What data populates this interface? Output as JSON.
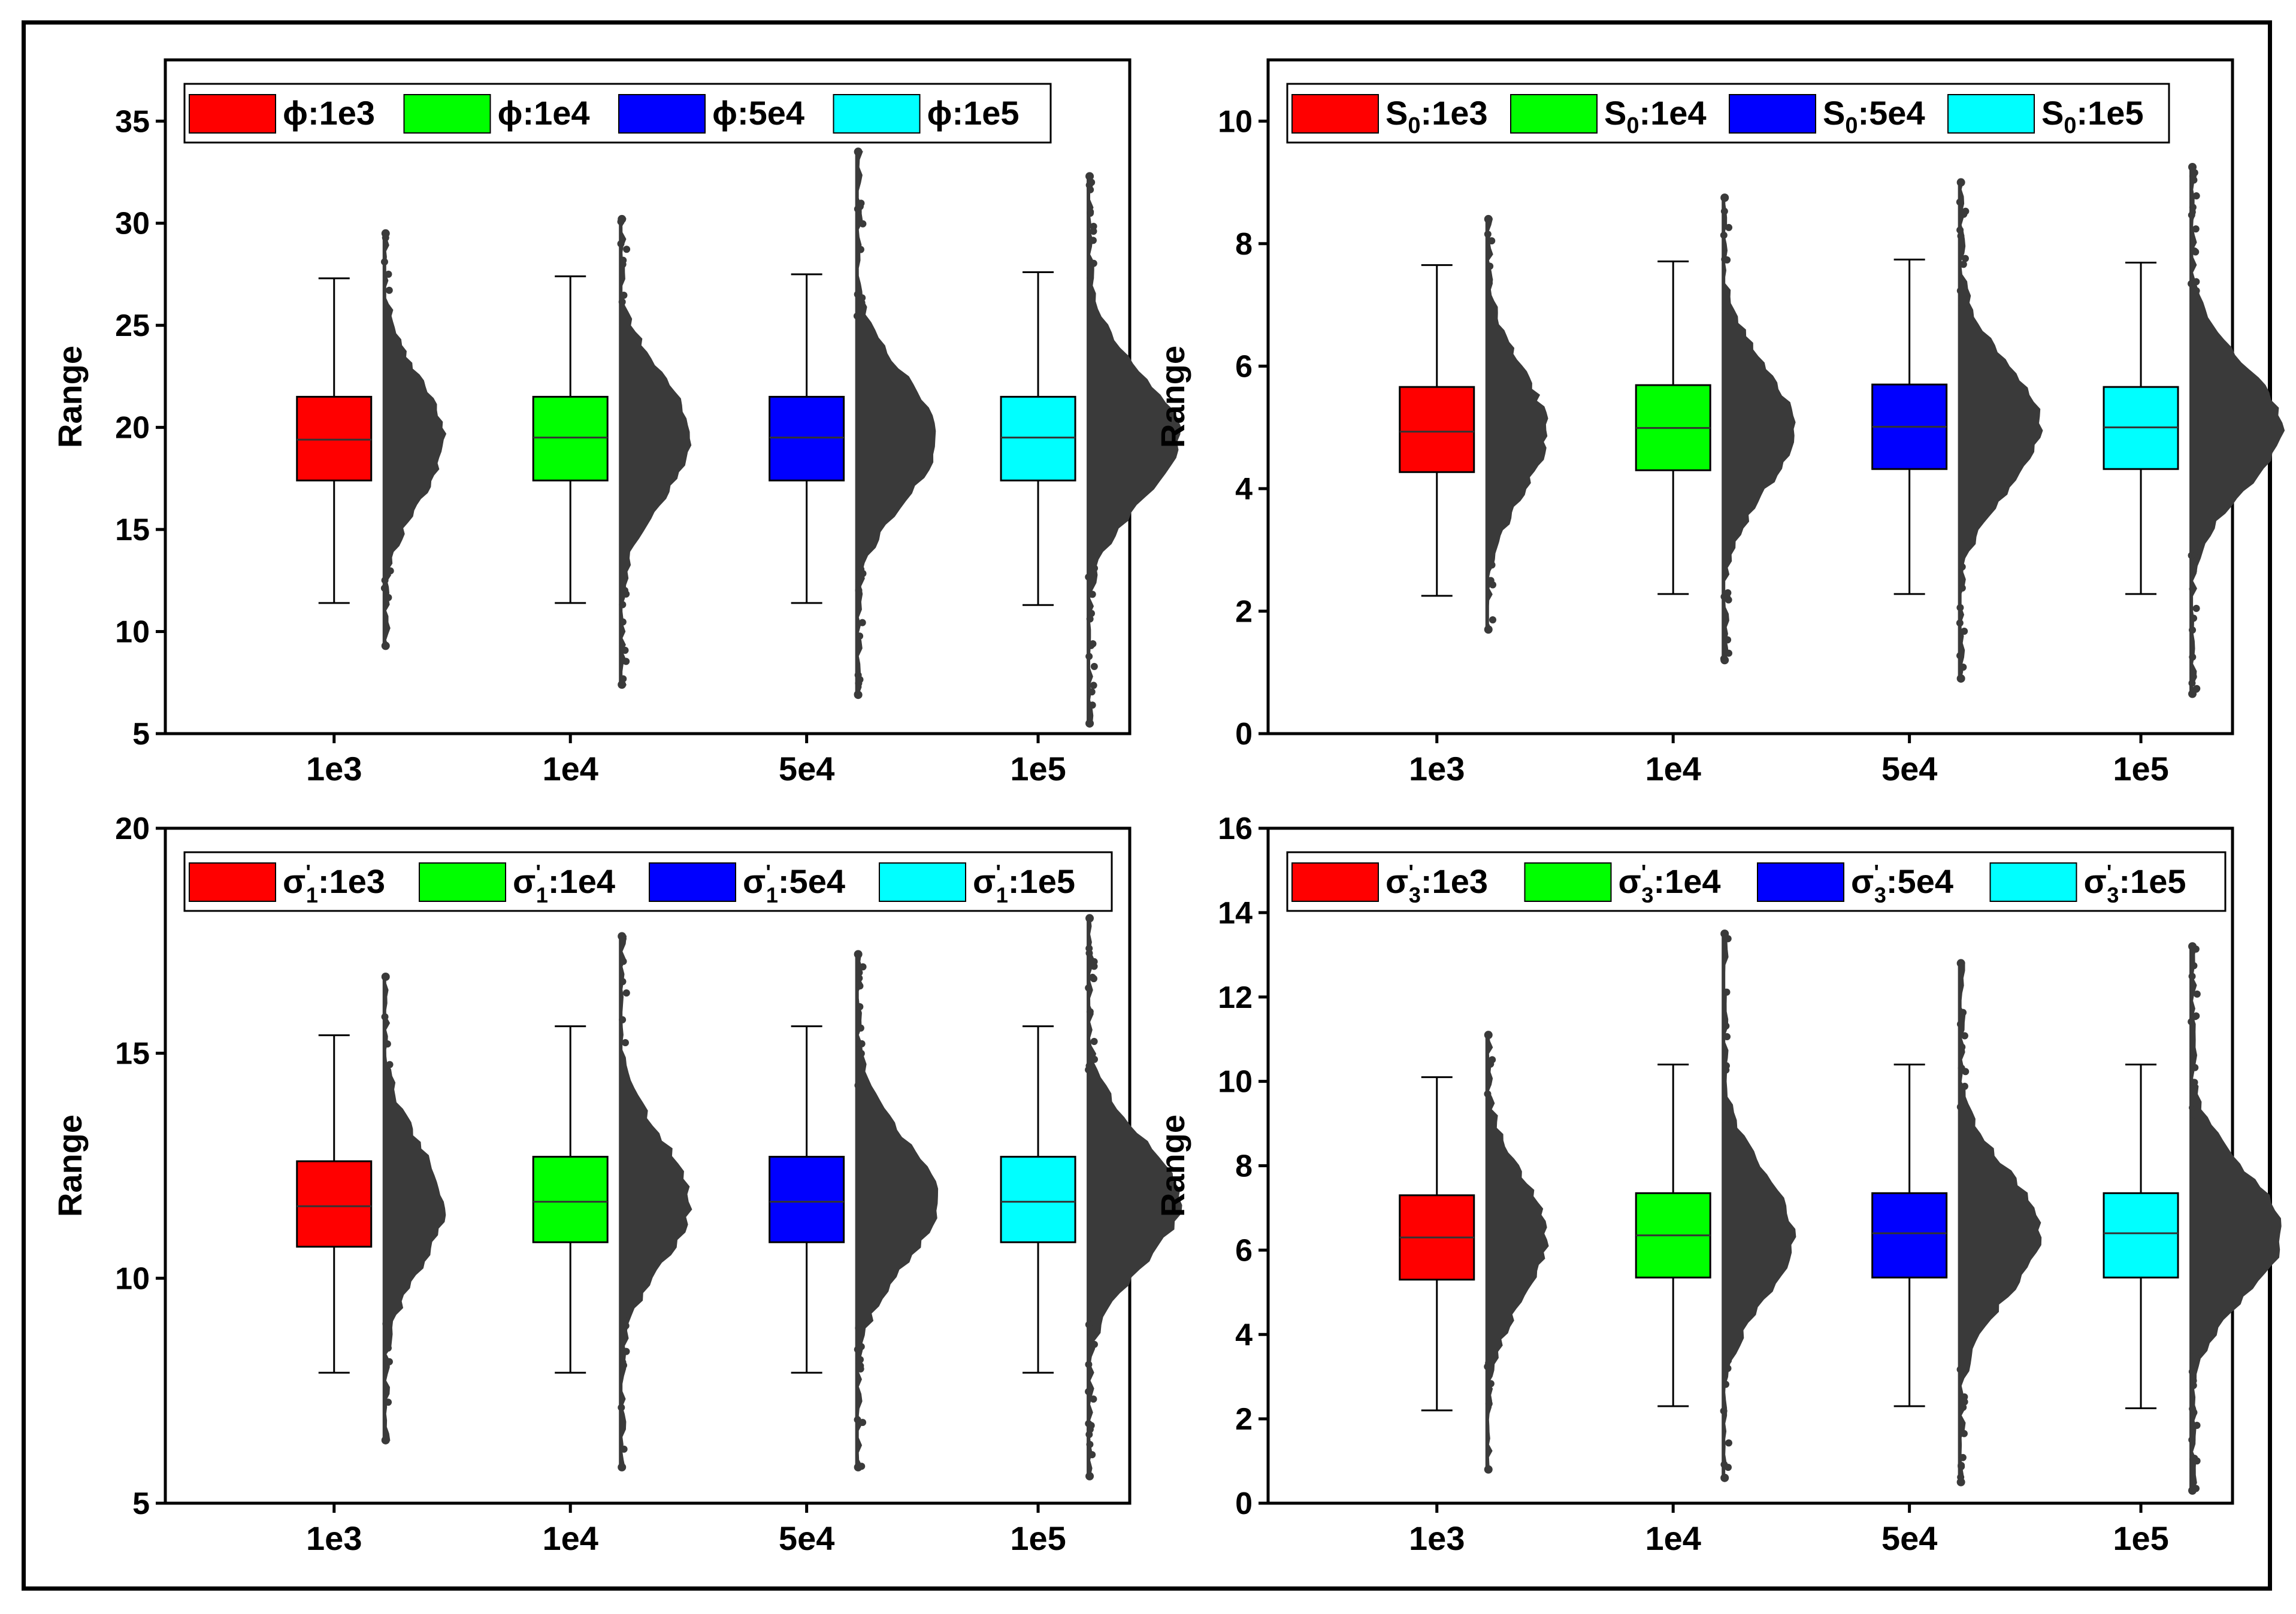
{
  "colors": {
    "red": "#ff0000",
    "green": "#00ff00",
    "blue": "#0000ff",
    "cyan": "#00ffff",
    "scatter": "#3a3a3a"
  },
  "chart_data": [
    {
      "type": "box",
      "ylabel": "Range",
      "ylim": [
        5,
        38
      ],
      "yticks": [
        5,
        10,
        15,
        20,
        25,
        30,
        35
      ],
      "categories": [
        "1e3",
        "1e4",
        "5e4",
        "1e5"
      ],
      "legend": [
        {
          "sym": "ϕ",
          "sub": "",
          "sup": "",
          "text": ":1e3"
        },
        {
          "sym": "ϕ",
          "sub": "",
          "sup": "",
          "text": ":1e4"
        },
        {
          "sym": "ϕ",
          "sub": "",
          "sup": "",
          "text": ":5e4"
        },
        {
          "sym": "ϕ",
          "sub": "",
          "sup": "",
          "text": ":1e5"
        }
      ],
      "boxes": [
        {
          "whisker_low": 11.4,
          "q1": 17.4,
          "median": 19.4,
          "q3": 21.5,
          "whisker_high": 27.3,
          "dist_min": 9.3,
          "dist_max": 29.5
        },
        {
          "whisker_low": 11.4,
          "q1": 17.4,
          "median": 19.5,
          "q3": 21.5,
          "whisker_high": 27.4,
          "dist_min": 7.4,
          "dist_max": 30.2
        },
        {
          "whisker_low": 11.4,
          "q1": 17.4,
          "median": 19.5,
          "q3": 21.5,
          "whisker_high": 27.5,
          "dist_min": 6.9,
          "dist_max": 33.5
        },
        {
          "whisker_low": 11.3,
          "q1": 17.4,
          "median": 19.5,
          "q3": 21.5,
          "whisker_high": 27.6,
          "dist_min": 5.5,
          "dist_max": 32.3
        }
      ]
    },
    {
      "type": "box",
      "ylabel": "Range",
      "ylim": [
        0,
        11
      ],
      "yticks": [
        0,
        2,
        4,
        6,
        8,
        10
      ],
      "categories": [
        "1e3",
        "1e4",
        "5e4",
        "1e5"
      ],
      "legend": [
        {
          "sym": "S",
          "sub": "0",
          "sup": "",
          "text": ":1e3"
        },
        {
          "sym": "S",
          "sub": "0",
          "sup": "",
          "text": ":1e4"
        },
        {
          "sym": "S",
          "sub": "0",
          "sup": "",
          "text": ":5e4"
        },
        {
          "sym": "S",
          "sub": "0",
          "sup": "",
          "text": ":1e5"
        }
      ],
      "boxes": [
        {
          "whisker_low": 2.25,
          "q1": 4.27,
          "median": 4.93,
          "q3": 5.66,
          "whisker_high": 7.65,
          "dist_min": 1.7,
          "dist_max": 8.4
        },
        {
          "whisker_low": 2.28,
          "q1": 4.3,
          "median": 4.99,
          "q3": 5.69,
          "whisker_high": 7.71,
          "dist_min": 1.2,
          "dist_max": 8.75
        },
        {
          "whisker_low": 2.28,
          "q1": 4.32,
          "median": 5.01,
          "q3": 5.7,
          "whisker_high": 7.74,
          "dist_min": 0.9,
          "dist_max": 9.0
        },
        {
          "whisker_low": 2.28,
          "q1": 4.32,
          "median": 5.0,
          "q3": 5.66,
          "whisker_high": 7.69,
          "dist_min": 0.65,
          "dist_max": 9.25
        }
      ]
    },
    {
      "type": "box",
      "ylabel": "Range",
      "ylim": [
        5,
        20
      ],
      "yticks": [
        5,
        10,
        15,
        20
      ],
      "categories": [
        "1e3",
        "1e4",
        "5e4",
        "1e5"
      ],
      "legend": [
        {
          "sym": "σ",
          "sub": "1",
          "sup": "'",
          "text": ":1e3"
        },
        {
          "sym": "σ",
          "sub": "1",
          "sup": "'",
          "text": ":1e4"
        },
        {
          "sym": "σ",
          "sub": "1",
          "sup": "'",
          "text": ":5e4"
        },
        {
          "sym": "σ",
          "sub": "1",
          "sup": "'",
          "text": ":1e5"
        }
      ],
      "boxes": [
        {
          "whisker_low": 7.9,
          "q1": 10.7,
          "median": 11.6,
          "q3": 12.6,
          "whisker_high": 15.4,
          "dist_min": 6.4,
          "dist_max": 16.7
        },
        {
          "whisker_low": 7.9,
          "q1": 10.8,
          "median": 11.7,
          "q3": 12.7,
          "whisker_high": 15.6,
          "dist_min": 5.8,
          "dist_max": 17.6
        },
        {
          "whisker_low": 7.9,
          "q1": 10.8,
          "median": 11.7,
          "q3": 12.7,
          "whisker_high": 15.6,
          "dist_min": 5.8,
          "dist_max": 17.2
        },
        {
          "whisker_low": 7.9,
          "q1": 10.8,
          "median": 11.7,
          "q3": 12.7,
          "whisker_high": 15.6,
          "dist_min": 5.6,
          "dist_max": 18.0
        }
      ]
    },
    {
      "type": "box",
      "ylabel": "Range",
      "ylim": [
        0,
        16
      ],
      "yticks": [
        0,
        2,
        4,
        6,
        8,
        10,
        12,
        14,
        16
      ],
      "categories": [
        "1e3",
        "1e4",
        "5e4",
        "1e5"
      ],
      "legend": [
        {
          "sym": "σ",
          "sub": "3",
          "sup": "'",
          "text": ":1e3"
        },
        {
          "sym": "σ",
          "sub": "3",
          "sup": "'",
          "text": ":1e4"
        },
        {
          "sym": "σ",
          "sub": "3",
          "sup": "'",
          "text": ":5e4"
        },
        {
          "sym": "σ",
          "sub": "3",
          "sup": "'",
          "text": ":1e5"
        }
      ],
      "boxes": [
        {
          "whisker_low": 2.2,
          "q1": 5.3,
          "median": 6.3,
          "q3": 7.3,
          "whisker_high": 10.1,
          "dist_min": 0.8,
          "dist_max": 11.1
        },
        {
          "whisker_low": 2.3,
          "q1": 5.35,
          "median": 6.35,
          "q3": 7.35,
          "whisker_high": 10.4,
          "dist_min": 0.6,
          "dist_max": 13.5
        },
        {
          "whisker_low": 2.3,
          "q1": 5.35,
          "median": 6.4,
          "q3": 7.35,
          "whisker_high": 10.4,
          "dist_min": 0.5,
          "dist_max": 12.8
        },
        {
          "whisker_low": 2.25,
          "q1": 5.35,
          "median": 6.4,
          "q3": 7.35,
          "whisker_high": 10.4,
          "dist_min": 0.3,
          "dist_max": 13.2
        }
      ]
    }
  ]
}
